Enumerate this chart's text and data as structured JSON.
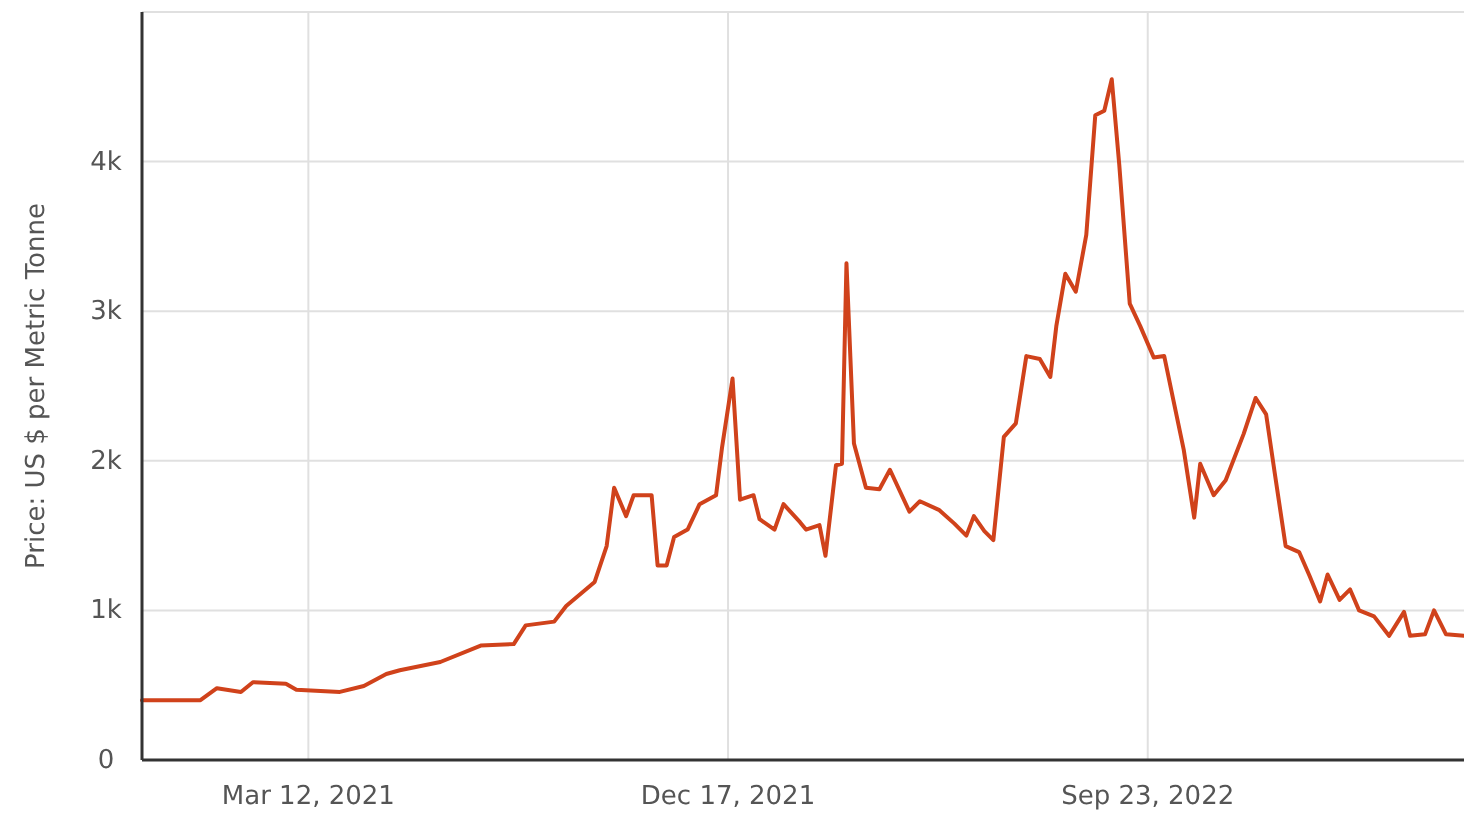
{
  "chart_data": {
    "type": "line",
    "ylabel": "Price: US $ per Metric Tonne",
    "xlim": [
      "2020-11-21",
      "2023-04-22"
    ],
    "xticks": [
      {
        "value": "2021-03-12",
        "label": "Mar 12, 2021"
      },
      {
        "value": "2021-12-17",
        "label": "Dec 17, 2021"
      },
      {
        "value": "2022-09-23",
        "label": "Sep 23, 2022"
      }
    ],
    "ylim": [
      0,
      5000
    ],
    "yticks": [
      0,
      {
        "value": 1000,
        "label": "1k"
      },
      {
        "value": 2000,
        "label": "2k"
      },
      {
        "value": 3000,
        "label": "3k"
      },
      {
        "value": 4000,
        "label": "4k"
      }
    ],
    "grid": true,
    "marker": "none",
    "line_style": "solid",
    "x": [
      "2020-11-21",
      "2020-12-30",
      "2021-01-10",
      "2021-01-26",
      "2021-02-03",
      "2021-02-25",
      "2021-03-04",
      "2021-04-02",
      "2021-04-18",
      "2021-05-03",
      "2021-05-12",
      "2021-06-08",
      "2021-07-05",
      "2021-07-27",
      "2021-08-04",
      "2021-08-23",
      "2021-08-31",
      "2021-09-19",
      "2021-09-27",
      "2021-10-02",
      "2021-10-10",
      "2021-10-15",
      "2021-10-27",
      "2021-10-31",
      "2021-11-06",
      "2021-11-11",
      "2021-11-20",
      "2021-11-28",
      "2021-12-09",
      "2021-12-13",
      "2021-12-20",
      "2021-12-25",
      "2022-01-03",
      "2022-01-07",
      "2022-01-17",
      "2022-01-23",
      "2022-02-03",
      "2022-02-07",
      "2022-02-16",
      "2022-02-20",
      "2022-02-27",
      "2022-03-03",
      "2022-03-06",
      "2022-03-11",
      "2022-03-19",
      "2022-03-28",
      "2022-04-04",
      "2022-04-17",
      "2022-04-24",
      "2022-05-07",
      "2022-05-17",
      "2022-05-25",
      "2022-05-30",
      "2022-06-06",
      "2022-06-12",
      "2022-06-19",
      "2022-06-27",
      "2022-07-04",
      "2022-07-13",
      "2022-07-20",
      "2022-07-24",
      "2022-07-30",
      "2022-08-06",
      "2022-08-13",
      "2022-08-19",
      "2022-08-25",
      "2022-08-30",
      "2022-09-04",
      "2022-09-11",
      "2022-09-18",
      "2022-09-27",
      "2022-10-04",
      "2022-10-10",
      "2022-10-17",
      "2022-10-24",
      "2022-10-28",
      "2022-11-06",
      "2022-11-14",
      "2022-11-26",
      "2022-12-04",
      "2022-12-11",
      "2022-12-17",
      "2022-12-24",
      "2023-01-02",
      "2023-01-09",
      "2023-01-16",
      "2023-01-21",
      "2023-01-29",
      "2023-02-05",
      "2023-02-11",
      "2023-02-21",
      "2023-03-03",
      "2023-03-13",
      "2023-03-17",
      "2023-03-27",
      "2023-04-02",
      "2023-04-10",
      "2023-04-22"
    ],
    "series": [
      {
        "color": "#d0421b",
        "values": [
          400,
          400,
          480,
          455,
          520,
          510,
          470,
          455,
          495,
          575,
          600,
          655,
          765,
          775,
          900,
          925,
          1030,
          1190,
          1430,
          1820,
          1630,
          1770,
          1770,
          1300,
          1300,
          1490,
          1540,
          1710,
          1770,
          2090,
          2550,
          1740,
          1770,
          1610,
          1540,
          1710,
          1590,
          1540,
          1570,
          1365,
          1970,
          1980,
          3320,
          2115,
          1820,
          1810,
          1940,
          1660,
          1730,
          1670,
          1580,
          1500,
          1630,
          1530,
          1470,
          2160,
          2250,
          2700,
          2680,
          2560,
          2900,
          3250,
          3130,
          3510,
          4310,
          4340,
          4550,
          3980,
          3050,
          2900,
          2690,
          2700,
          2410,
          2075,
          1620,
          1980,
          1770,
          1870,
          2180,
          2420,
          2310,
          1900,
          1430,
          1390,
          1230,
          1060,
          1240,
          1070,
          1140,
          1000,
          960,
          830,
          990,
          830,
          840,
          1000,
          840,
          830
        ]
      }
    ]
  }
}
